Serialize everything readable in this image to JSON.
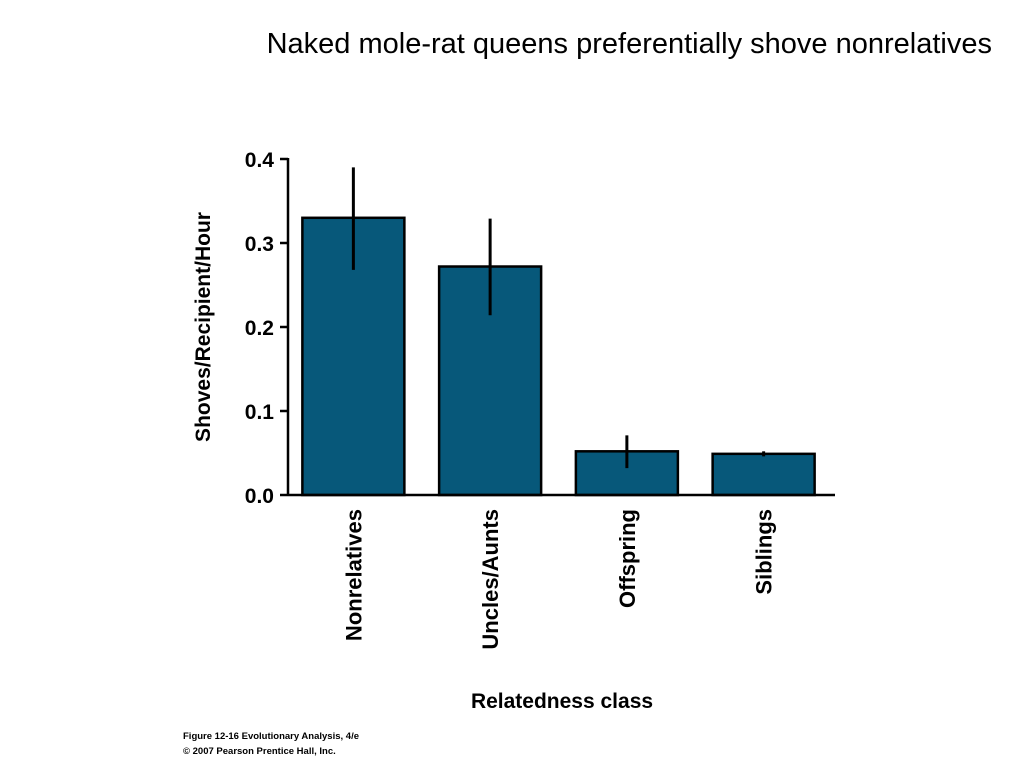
{
  "slide": {
    "title": "Naked mole-rat queens preferentially shove nonrelatives"
  },
  "caption": {
    "line1": "Figure 12-16  Evolutionary Analysis, 4/e",
    "line2": "© 2007 Pearson Prentice Hall, Inc."
  },
  "chart_data": {
    "type": "bar",
    "title": "",
    "xlabel": "Relatedness class",
    "ylabel": "Shoves/Recipient/Hour",
    "categories": [
      "Nonrelatives",
      "Uncles/Aunts",
      "Offspring",
      "Siblings"
    ],
    "values": [
      0.33,
      0.272,
      0.052,
      0.049
    ],
    "error_low": [
      0.268,
      0.214,
      0.032,
      0.046
    ],
    "error_high": [
      0.39,
      0.329,
      0.071,
      0.052
    ],
    "ylim": [
      0,
      0.4
    ],
    "yticks": [
      "0.0",
      "0.1",
      "0.2",
      "0.3",
      "0.4"
    ],
    "grid": false,
    "colors": {
      "bar": "#07587a",
      "outline": "#000000"
    }
  }
}
